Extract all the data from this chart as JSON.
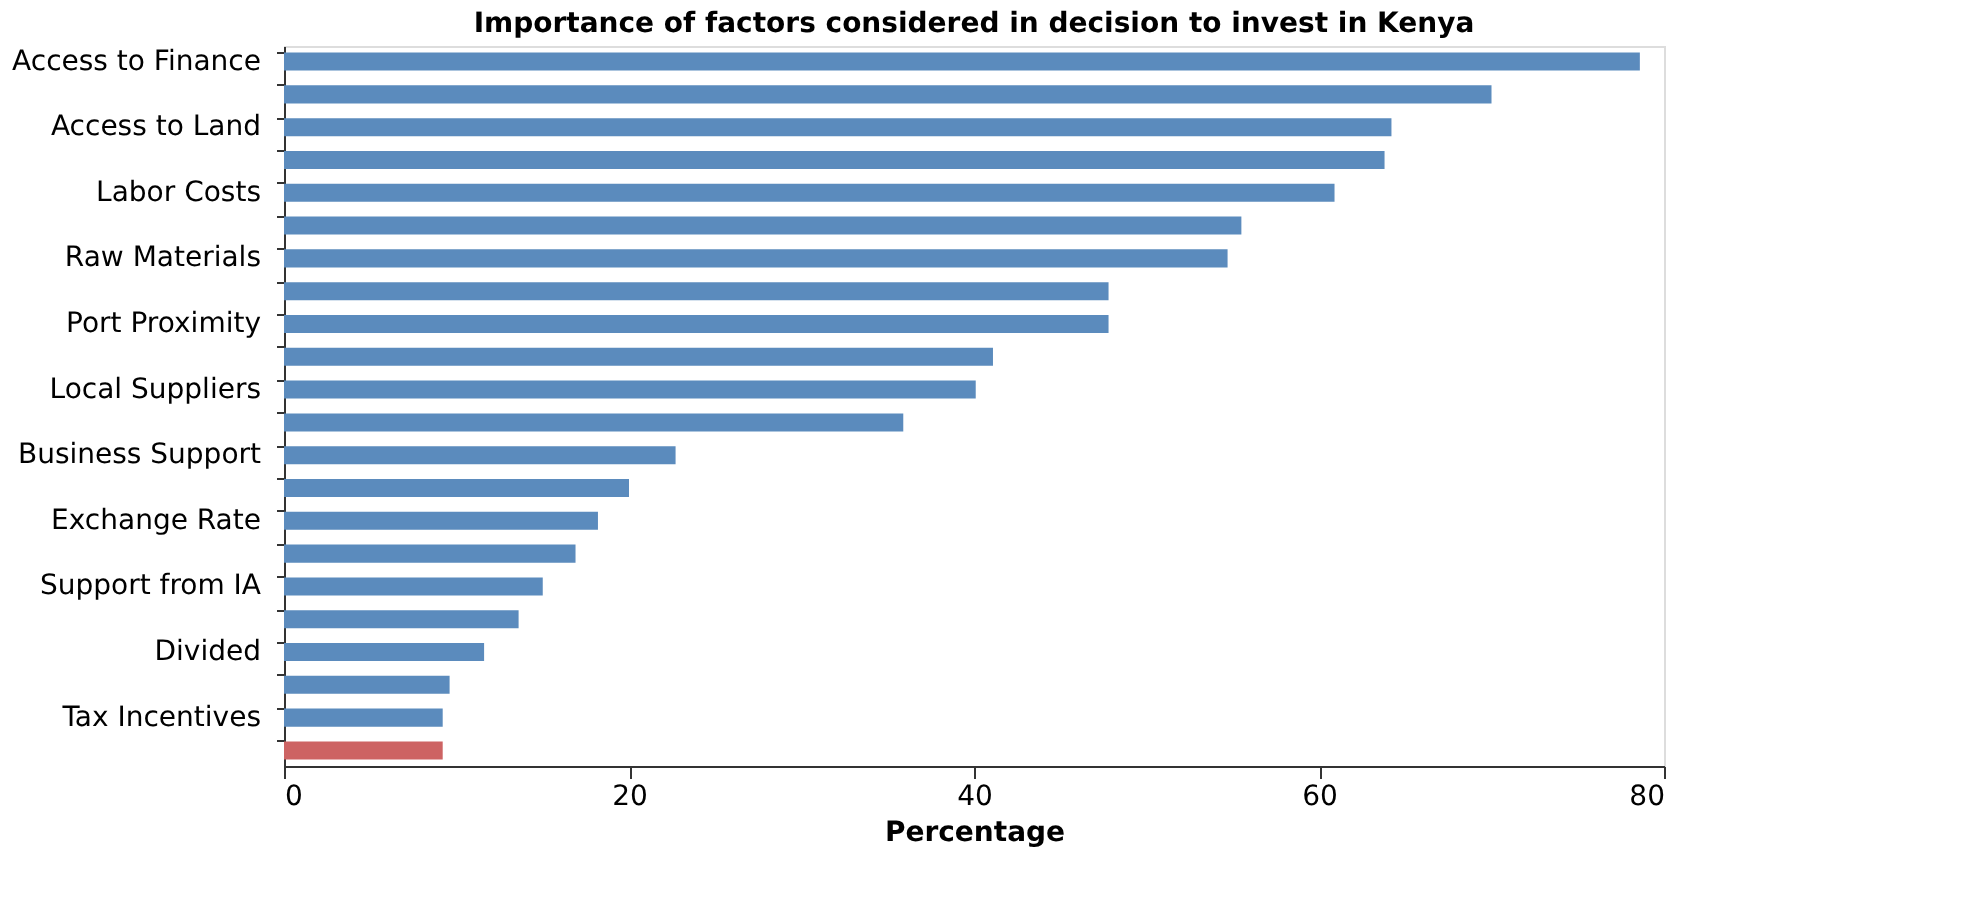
{
  "chart_data": {
    "type": "bar",
    "orientation": "horizontal",
    "title": "Importance of factors considered in decision to invest in Kenya",
    "xlabel": "Percentage",
    "categories": [
      "Access to Finance",
      null,
      "Access to Land",
      null,
      "Labor Costs",
      null,
      "Raw Materials",
      null,
      "Port Proximity",
      null,
      "Local Suppliers",
      null,
      "Business Support",
      null,
      "Exchange Rate",
      null,
      "Support from IA",
      null,
      "Divided",
      null,
      "Tax Incentives",
      null
    ],
    "values": [
      78.6,
      70.0,
      64.2,
      63.8,
      60.9,
      55.5,
      54.7,
      47.8,
      47.8,
      41.1,
      40.1,
      35.9,
      22.7,
      20.0,
      18.2,
      16.9,
      15.0,
      13.6,
      11.6,
      9.6,
      9.2,
      9.2
    ],
    "colors": [
      "#5b8bbd",
      "#5b8bbd",
      "#5b8bbd",
      "#5b8bbd",
      "#5b8bbd",
      "#5b8bbd",
      "#5b8bbd",
      "#5b8bbd",
      "#5b8bbd",
      "#5b8bbd",
      "#5b8bbd",
      "#5b8bbd",
      "#5b8bbd",
      "#5b8bbd",
      "#5b8bbd",
      "#5b8bbd",
      "#5b8bbd",
      "#5b8bbd",
      "#5b8bbd",
      "#5b8bbd",
      "#5b8bbd",
      "#cd6363"
    ],
    "xlim": [
      0,
      80
    ],
    "xticks": [
      0,
      20,
      40,
      60,
      80
    ],
    "grid": false
  }
}
